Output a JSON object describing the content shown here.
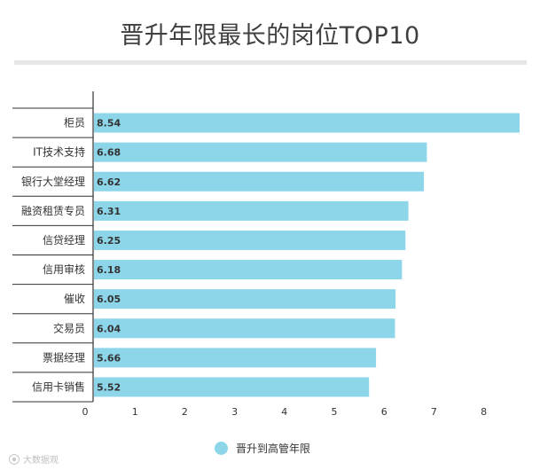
{
  "chart_data": {
    "type": "bar",
    "orientation": "horizontal",
    "title": "晋升年限最长的岗位TOP10",
    "categories": [
      "柜员",
      "IT技术支持",
      "银行大堂经理",
      "融资租赁专员",
      "信贷经理",
      "信用审核",
      "催收",
      "交易员",
      "票据经理",
      "信用卡销售"
    ],
    "series": [
      {
        "name": "晋升到高管年限",
        "values": [
          8.54,
          6.68,
          6.62,
          6.31,
          6.25,
          6.18,
          6.05,
          6.04,
          5.66,
          5.52
        ]
      }
    ],
    "value_labels": [
      "8.54",
      "6.68",
      "6.62",
      "6.31",
      "6.25",
      "6.18",
      "6.05",
      "6.04",
      "5.66",
      "5.52"
    ],
    "xticks": [
      "0",
      "1",
      "2",
      "3",
      "4",
      "5",
      "6",
      "7",
      "8"
    ],
    "xlim": [
      0,
      8.7
    ],
    "grid": false,
    "legend_position": "bottom-center",
    "colors": {
      "bar": "#8dd6ea",
      "axis": "#333333",
      "title_bar": "#e6e6e6"
    }
  },
  "watermark": {
    "text": "大数据观",
    "icon": "watermark-logo-icon"
  }
}
